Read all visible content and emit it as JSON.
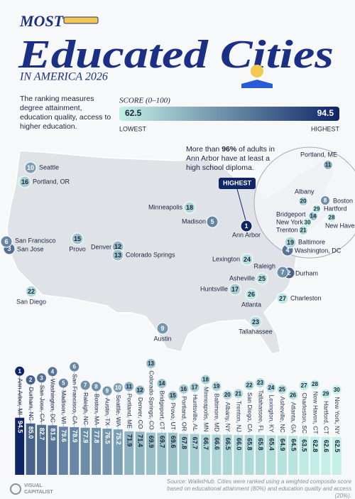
{
  "header": {
    "kicker": "MOST",
    "title": "Educated Cities",
    "subtitle": "IN AMERICA 2026",
    "description": "The ranking measures degree attainment, education quality, access to higher education."
  },
  "legend": {
    "title": "SCORE (0–100)",
    "min": 62.5,
    "max": 94.5,
    "min_label": "LOWEST",
    "max_label": "HIGHEST",
    "colors": [
      "#c4f0e6",
      "#0f2566"
    ]
  },
  "annotation": {
    "parts": [
      "More than ",
      "96%",
      " of adults in Ann Arbor have at least a high school diploma."
    ],
    "badge": "HIGHEST"
  },
  "chart_data": {
    "type": "bar",
    "categories": [
      "Ann Arbor, MI",
      "Durham, NC",
      "San Jose, CA",
      "Washington, DC",
      "Madison, WI",
      "San Francisco, CA",
      "Raleigh, NC",
      "Boston, MA",
      "Austin, TX",
      "Seattle, WA",
      "Portland, ME",
      "Denver, CO",
      "Colorado Springs, CO",
      "Bridgeport, CT",
      "Provo, UT",
      "Portland, OR",
      "Huntsville, AL",
      "Minneapolis, MN",
      "Baltimore, MD",
      "Albany, NY",
      "Trenton, NJ",
      "San Diego, CA",
      "Tallahassee, FL",
      "Lexington, KY",
      "Asheville, NC",
      "Atlanta, GA",
      "Charleston, SC",
      "New Haven, CT",
      "Hartford, CT",
      "New York, NY"
    ],
    "ranks": [
      1,
      2,
      3,
      4,
      5,
      6,
      7,
      8,
      9,
      10,
      11,
      12,
      13,
      14,
      15,
      16,
      17,
      18,
      19,
      20,
      21,
      22,
      23,
      24,
      25,
      26,
      27,
      28,
      29,
      30
    ],
    "map_labels": [
      "Ann Arbor",
      "Durham",
      "San Jose",
      "Washington, DC",
      "Madison",
      "San Francisco",
      "Raleigh",
      "Boston",
      "Austin",
      "Seattle",
      "Portland, ME",
      "Denver",
      "Colorado Springs",
      "Bridgeport",
      "Provo",
      "Portland, OR",
      "Huntsville",
      "Minneapolis",
      "Baltimore",
      "Albany",
      "Trenton",
      "San Diego",
      "Tallahassee",
      "Lexington",
      "Asheville",
      "Atlanta",
      "Charleston",
      "New Haven",
      "Hartford",
      "New York"
    ],
    "values": [
      94.5,
      85.0,
      82.7,
      81.9,
      79.6,
      78.9,
      77.9,
      77.8,
      76.5,
      75.2,
      71.9,
      71.4,
      69.9,
      69.7,
      69.6,
      67.8,
      67.7,
      66.7,
      66.6,
      66.5,
      66.0,
      65.8,
      65.8,
      65.4,
      64.9,
      64.5,
      63.5,
      62.8,
      62.6,
      62.5
    ],
    "value_labels": [
      "94.5",
      "85.0",
      "82.7",
      "81.9",
      "79.6",
      "78.9",
      "77.9",
      "77.8",
      "76.5",
      "75.2",
      "71.9",
      "71.4",
      "69.9",
      "69.7",
      "69.6",
      "67.8",
      "67.7",
      "66.7",
      "66.6",
      "66.5",
      "66.0",
      "65.8",
      "65.8",
      "65.4",
      "64.9",
      "64.5",
      "63.5",
      "62.8",
      "62.6",
      "62.5"
    ],
    "ylim": [
      0,
      100
    ]
  },
  "source": "Source: WalletHub. Cities were ranked using a weighted composite score based on educational attainment (80%) and education quality and access (20%).",
  "logo": [
    "VISUAL",
    "CAPITALIST"
  ]
}
